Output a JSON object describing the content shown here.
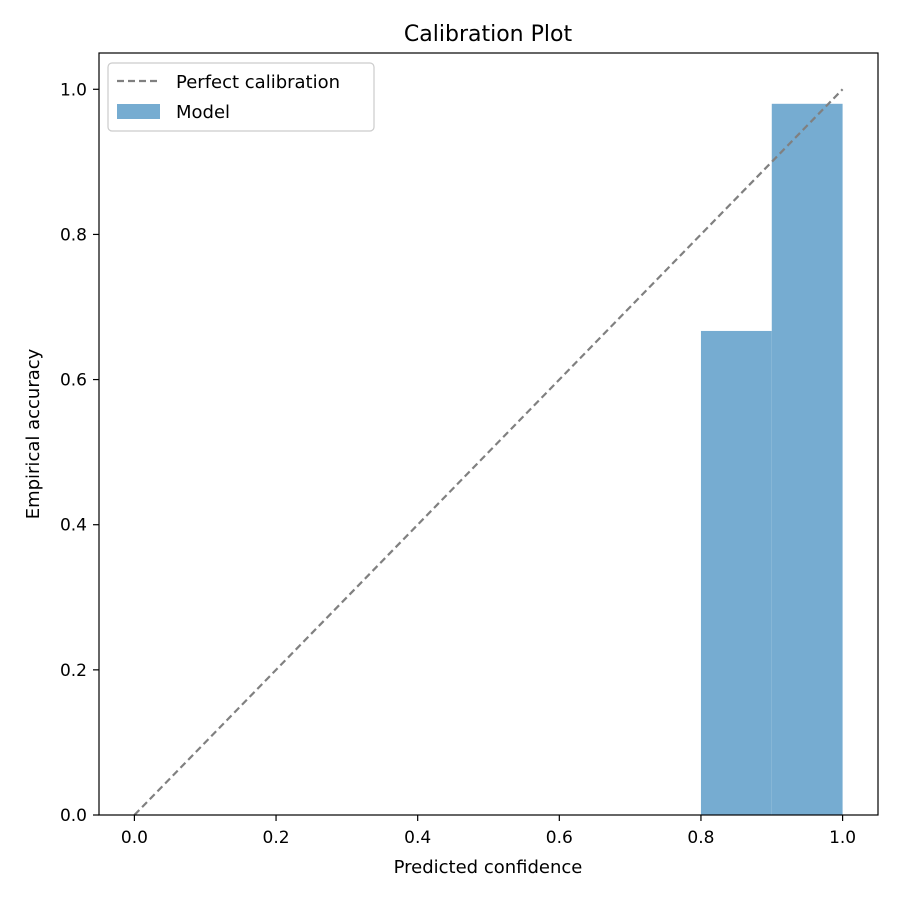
{
  "chart_data": {
    "type": "bar",
    "title": "Calibration Plot",
    "xlabel": "Predicted confidence",
    "ylabel": "Empirical accuracy",
    "xlim": [
      -0.05,
      1.05
    ],
    "ylim": [
      0.0,
      1.05
    ],
    "xticks": [
      "0.0",
      "0.2",
      "0.4",
      "0.6",
      "0.8",
      "1.0"
    ],
    "yticks": [
      "0.0",
      "0.2",
      "0.4",
      "0.6",
      "0.8",
      "1.0"
    ],
    "grid": false,
    "legend": {
      "placement": "top-left",
      "entries": [
        "Perfect calibration",
        "Model"
      ]
    },
    "series": [
      {
        "name": "Model",
        "type": "bar",
        "bins": [
          {
            "x0": 0.8,
            "x1": 0.9,
            "value": 0.667
          },
          {
            "x0": 0.9,
            "x1": 1.0,
            "value": 0.98
          }
        ],
        "color": "#76ACD1"
      },
      {
        "name": "Perfect calibration",
        "type": "line",
        "x": [
          0.0,
          1.0
        ],
        "y": [
          0.0,
          1.0
        ],
        "color": "#808080",
        "style": "dashed"
      }
    ]
  }
}
